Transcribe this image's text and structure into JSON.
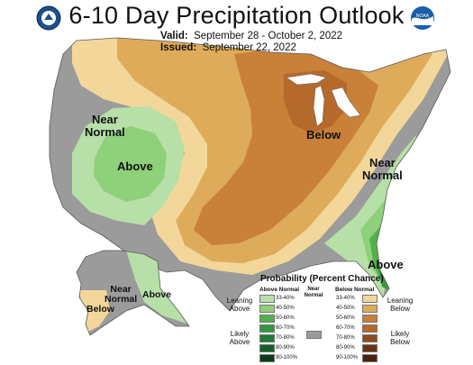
{
  "title": "6-10 Day Precipitation Outlook",
  "valid": {
    "label": "Valid:",
    "value": "September 28 - October 2, 2022"
  },
  "issued": {
    "label": "Issued:",
    "value": "September 22, 2022"
  },
  "logos": {
    "left": "doc-seal-icon",
    "right": "noaa-logo-icon"
  },
  "map_labels": {
    "near_normal_west": [
      "Near",
      "Normal"
    ],
    "above_southwest": "Above",
    "below_midwest": "Below",
    "near_normal_east": [
      "Near",
      "Normal"
    ],
    "above_southeast": "Above",
    "alaska_near_normal": [
      "Near",
      "Normal"
    ],
    "alaska_above": "Above",
    "alaska_below": "Below"
  },
  "legend": {
    "title": "Probability (Percent Chance)",
    "above_header": "Above Normal",
    "below_header": "Below Normal",
    "near_normal": [
      "Near",
      "Normal"
    ],
    "leaning_above": [
      "Leaning",
      "Above"
    ],
    "likely_above": [
      "Likely",
      "Above"
    ],
    "leaning_below": [
      "Leaning",
      "Below"
    ],
    "likely_below": [
      "Likely",
      "Below"
    ],
    "above_classes": [
      {
        "range": "33-40%",
        "color": "#b7dfa8"
      },
      {
        "range": "40-50%",
        "color": "#8fd07a"
      },
      {
        "range": "50-60%",
        "color": "#52b14a"
      },
      {
        "range": "60-70%",
        "color": "#2f9a3e"
      },
      {
        "range": "70-80%",
        "color": "#1f7b35"
      },
      {
        "range": "80-90%",
        "color": "#155f28"
      },
      {
        "range": "90-100%",
        "color": "#0a3d17"
      }
    ],
    "below_classes": [
      {
        "range": "33-40%",
        "color": "#f3d79a"
      },
      {
        "range": "40-50%",
        "color": "#deab5a"
      },
      {
        "range": "50-60%",
        "color": "#c98038"
      },
      {
        "range": "60-70%",
        "color": "#b56a2c"
      },
      {
        "range": "70-80%",
        "color": "#8c4e1d"
      },
      {
        "range": "80-90%",
        "color": "#6a3412"
      },
      {
        "range": "90-100%",
        "color": "#4a220b"
      }
    ],
    "near_color": "#9b9b9b"
  },
  "colors": {
    "near": "#9b9b9b",
    "lean_below": "#f3d79a",
    "below_40": "#deab5a",
    "below_50": "#c98038",
    "below_60": "#b56a2c",
    "lean_above": "#b7dfa8",
    "above_40": "#8fd07a",
    "above_50": "#52b14a",
    "above_60": "#2f9a3e",
    "water": "#ffffff",
    "border": "#5a5a5a"
  }
}
